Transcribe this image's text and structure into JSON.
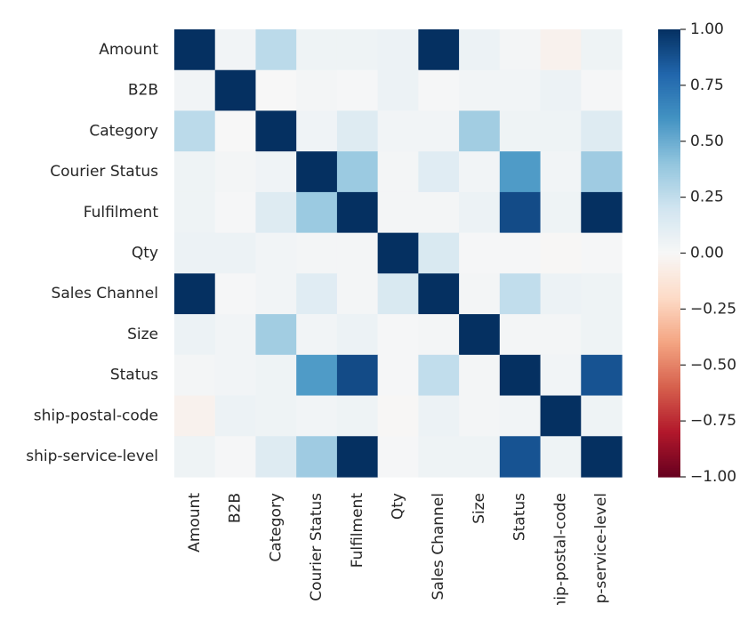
{
  "chart_data": {
    "type": "heatmap",
    "title": "",
    "xlabel": "",
    "ylabel": "",
    "columns": [
      "Amount",
      "B2B",
      "Category",
      "Courier Status",
      "Fulfilment",
      "Qty",
      "Sales Channel",
      "Size",
      "Status",
      "ship-postal-code",
      "ship-service-level"
    ],
    "rows": [
      "Amount",
      "B2B",
      "Category",
      "Courier Status",
      "Fulfilment",
      "Qty",
      "Sales Channel",
      "Size",
      "Status",
      "ship-postal-code",
      "ship-service-level"
    ],
    "values": [
      [
        1.0,
        0.03,
        0.27,
        0.05,
        0.05,
        0.06,
        1.0,
        0.06,
        0.02,
        -0.04,
        0.05
      ],
      [
        0.03,
        1.0,
        0.0,
        0.02,
        0.01,
        0.06,
        0.01,
        0.03,
        0.03,
        0.06,
        0.01
      ],
      [
        0.27,
        0.0,
        1.0,
        0.04,
        0.13,
        0.03,
        0.03,
        0.35,
        0.05,
        0.05,
        0.13
      ],
      [
        0.05,
        0.02,
        0.04,
        1.0,
        0.37,
        0.02,
        0.12,
        0.03,
        0.57,
        0.03,
        0.36
      ],
      [
        0.05,
        0.01,
        0.13,
        0.37,
        1.0,
        0.02,
        0.02,
        0.06,
        0.9,
        0.05,
        1.0
      ],
      [
        0.06,
        0.06,
        0.03,
        0.02,
        0.02,
        1.0,
        0.16,
        0.01,
        0.01,
        -0.01,
        0.01
      ],
      [
        1.0,
        0.01,
        0.03,
        0.12,
        0.02,
        0.16,
        1.0,
        0.02,
        0.25,
        0.06,
        0.05
      ],
      [
        0.06,
        0.03,
        0.35,
        0.03,
        0.06,
        0.01,
        0.02,
        1.0,
        0.02,
        0.02,
        0.05
      ],
      [
        0.02,
        0.03,
        0.05,
        0.57,
        0.9,
        0.01,
        0.25,
        0.02,
        1.0,
        0.03,
        0.87
      ],
      [
        -0.04,
        0.06,
        0.05,
        0.03,
        0.05,
        -0.01,
        0.06,
        0.02,
        0.03,
        1.0,
        0.05
      ],
      [
        0.05,
        0.01,
        0.13,
        0.36,
        1.0,
        0.01,
        0.05,
        0.05,
        0.87,
        0.05,
        1.0
      ]
    ],
    "colorbar": {
      "colormap": "RdBu",
      "vmin": -1.0,
      "vmax": 1.0,
      "ticks": [
        1.0,
        0.75,
        0.5,
        0.25,
        0.0,
        -0.25,
        -0.5,
        -0.75,
        -1.0
      ],
      "tick_labels": [
        "1.00",
        "0.75",
        "0.50",
        "0.25",
        "0.00",
        "−0.25",
        "−0.50",
        "−0.75",
        "−1.00"
      ]
    },
    "grid": false,
    "legend": "colorbar-right"
  }
}
